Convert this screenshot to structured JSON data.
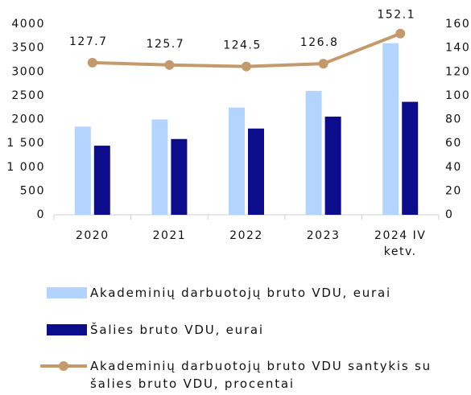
{
  "chart_data": {
    "type": "bar",
    "categories": [
      "2020",
      "2021",
      "2022",
      "2023",
      "2024 IV ketv."
    ],
    "series": [
      {
        "name": "Akademinių darbuotojų bruto VDU, eurai",
        "type": "bar",
        "color": "#b3d4ff",
        "values": [
          1850,
          2000,
          2250,
          2600,
          3600
        ]
      },
      {
        "name": "Šalies bruto VDU, eurai",
        "type": "bar",
        "color": "#0c0c8c",
        "values": [
          1450,
          1590,
          1810,
          2060,
          2370
        ]
      },
      {
        "name": "Akademinių darbuotojų bruto VDU santykis su šalies bruto VDU, procentai",
        "type": "line",
        "axis": "y2",
        "color": "#c49a6c",
        "values": [
          127.7,
          125.7,
          124.5,
          126.8,
          152.1
        ]
      }
    ],
    "ylim": [
      0,
      4000
    ],
    "yticks": [
      0,
      500,
      {
        "value": 1000,
        "label": "1 000"
      },
      {
        "value": 1500,
        "label": "1 500"
      },
      2000,
      2500,
      3000,
      3500,
      4000
    ],
    "y2lim": [
      0,
      160
    ],
    "y2ticks": [
      0,
      20,
      40,
      60,
      80,
      100,
      120,
      140,
      160
    ],
    "grid": false,
    "legend": "bottom"
  }
}
